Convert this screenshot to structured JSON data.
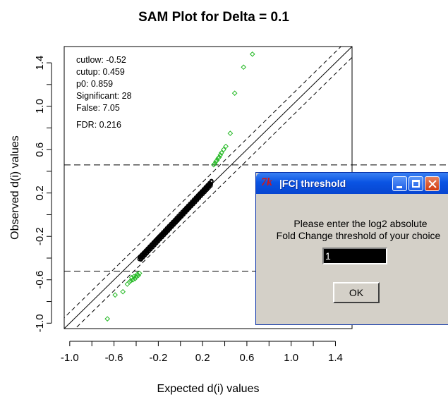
{
  "plot": {
    "title": "SAM Plot for Delta = 0.1",
    "xlabel": "Expected d(i) values",
    "ylabel": "Observed d(i) values",
    "stats": [
      "cutlow: -0.52",
      "cutup: 0.459",
      "p0: 0.859",
      "Significant: 28",
      "False: 7.05",
      "FDR: 0.216"
    ]
  },
  "chart_data": {
    "type": "scatter",
    "title": "SAM Plot for Delta = 0.1",
    "xlabel": "Expected d(i) values",
    "ylabel": "Observed d(i) values",
    "xlim": [
      -1.05,
      1.55
    ],
    "ylim": [
      -1.05,
      1.55
    ],
    "xticks": [
      "-1.0",
      "-0.6",
      "-0.2",
      "0.2",
      "0.6",
      "1.0",
      "1.4"
    ],
    "yticks": [
      "-1.0",
      "-0.6",
      "-0.2",
      "0.2",
      "0.6",
      "1.0",
      "1.4"
    ],
    "cut_lines": {
      "cutup": 0.459,
      "cutlow": -0.52
    },
    "delta": 0.1,
    "colors": {
      "nonsignificant": "#000000",
      "significant": "#22b822"
    },
    "significant_points": [
      {
        "x": 0.65,
        "y": 1.48
      },
      {
        "x": 0.57,
        "y": 1.36
      },
      {
        "x": 0.49,
        "y": 1.12
      },
      {
        "x": 0.45,
        "y": 0.75
      },
      {
        "x": 0.41,
        "y": 0.63
      },
      {
        "x": 0.39,
        "y": 0.6
      },
      {
        "x": 0.37,
        "y": 0.57
      },
      {
        "x": 0.36,
        "y": 0.55
      },
      {
        "x": 0.35,
        "y": 0.53
      },
      {
        "x": 0.34,
        "y": 0.52
      },
      {
        "x": 0.33,
        "y": 0.5
      },
      {
        "x": 0.32,
        "y": 0.49
      },
      {
        "x": 0.31,
        "y": 0.47
      },
      {
        "x": 0.3,
        "y": 0.46
      },
      {
        "x": -0.37,
        "y": -0.54
      },
      {
        "x": -0.38,
        "y": -0.56
      },
      {
        "x": -0.39,
        "y": -0.55
      },
      {
        "x": -0.4,
        "y": -0.57
      },
      {
        "x": -0.41,
        "y": -0.59
      },
      {
        "x": -0.42,
        "y": -0.57
      },
      {
        "x": -0.43,
        "y": -0.6
      },
      {
        "x": -0.44,
        "y": -0.58
      },
      {
        "x": -0.45,
        "y": -0.61
      },
      {
        "x": -0.46,
        "y": -0.62
      },
      {
        "x": -0.48,
        "y": -0.64
      },
      {
        "x": -0.52,
        "y": -0.71
      },
      {
        "x": -0.59,
        "y": -0.74
      },
      {
        "x": -0.66,
        "y": -0.96
      }
    ]
  },
  "dialog": {
    "tk_icon": "7k",
    "title": "|FC|  threshold",
    "message_line1": "Please enter the log2 absolute",
    "message_line2": "Fold Change threshold of your choice",
    "input_value": "1",
    "ok_label": "OK",
    "icons": [
      "tk-feather-icon",
      "minimize-icon",
      "maximize-icon",
      "close-icon"
    ]
  }
}
